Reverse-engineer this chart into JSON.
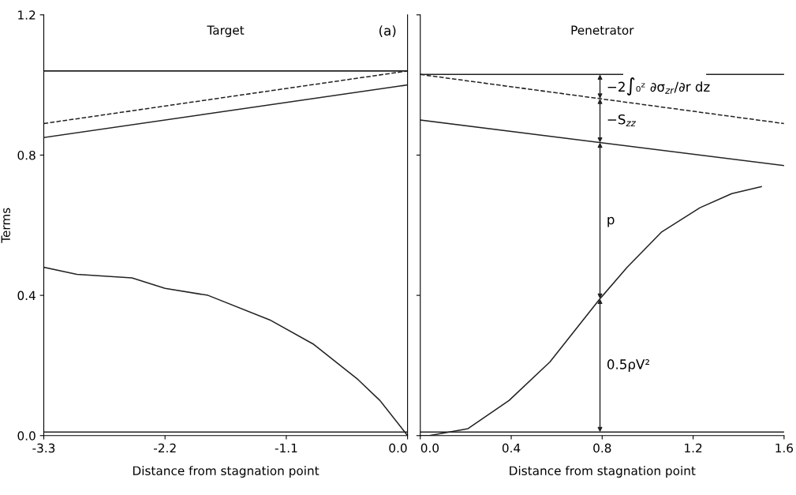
{
  "chart_data": [
    {
      "type": "line",
      "title": "Target",
      "xlabel": "Distance from stagnation point",
      "ylabel": "Terms",
      "xlim": [
        -3.3,
        0.0
      ],
      "xticks": [
        -3.3,
        -2.2,
        -1.1,
        {
          "value": 0.0,
          "label": "0.0"
        }
      ],
      "ylim": [
        0,
        1.2
      ],
      "yticks": [
        {
          "value": 0.0,
          "label": "0.0"
        },
        0.4,
        0.8,
        1.2
      ],
      "grid": false,
      "legend": false,
      "marker": "none",
      "annotations": [
        "(a)"
      ],
      "series": [
        {
          "color": "#222222",
          "x": [
            -3.3,
            0.0
          ],
          "values": [
            1.04,
            1.04
          ]
        },
        {
          "color": "#222222",
          "x": [
            -3.3,
            0.0
          ],
          "values": [
            0.89,
            1.04
          ],
          "line_style": "dashed"
        },
        {
          "color": "#222222",
          "x": [
            -3.3,
            0.0
          ],
          "values": [
            0.85,
            1.0
          ]
        },
        {
          "color": "#222222",
          "x": [
            -3.3,
            -3.0,
            -2.5,
            -2.2,
            -1.81,
            -1.25,
            -0.85,
            -0.45,
            -0.25,
            0.0
          ],
          "values": [
            0.48,
            0.46,
            0.45,
            0.42,
            0.4,
            0.33,
            0.26,
            0.16,
            0.1,
            0.0
          ]
        },
        {
          "color": "#222222",
          "x": [
            -3.3,
            0.0
          ],
          "values": [
            0.01,
            0.01
          ]
        }
      ]
    },
    {
      "type": "line",
      "title": "Penetrator",
      "xlabel": "Distance from stagnation point",
      "xlim": [
        0.0,
        1.6
      ],
      "xticks": [
        {
          "value": 0.0,
          "label": "0.0"
        },
        0.4,
        0.8,
        1.2,
        1.6
      ],
      "ylim": [
        0,
        1.2
      ],
      "tick_labels": "x",
      "grid": false,
      "legend": false,
      "marker": "none",
      "annotations": [
        "0.5ρV²",
        "p",
        "−S$_{zz}$",
        "−2∫₀ᶻ ∂σ$_{zr}$/∂r dz"
      ],
      "series": [
        {
          "color": "#222222",
          "x": [
            0.0,
            0.89,
            1.08,
            1.26,
            1.6
          ],
          "values": [
            1.03,
            1.03,
            null,
            1.03,
            1.03
          ]
        },
        {
          "color": "#222222",
          "x": [
            0.0,
            1.6
          ],
          "values": [
            1.03,
            0.89
          ],
          "line_style": "dashed"
        },
        {
          "color": "#222222",
          "x": [
            0.0,
            1.6
          ],
          "values": [
            0.9,
            0.77
          ]
        },
        {
          "color": "#222222",
          "x": [
            0.0,
            0.04,
            0.21,
            0.39,
            0.57,
            0.79,
            0.91,
            1.06,
            1.23,
            1.37,
            1.5
          ],
          "values": [
            0.0,
            0.0,
            0.02,
            0.1,
            0.21,
            0.39,
            0.48,
            0.58,
            0.65,
            0.69,
            0.71
          ]
        },
        {
          "color": "#222222",
          "x": [
            0.0,
            1.6
          ],
          "values": [
            0.01,
            0.01
          ]
        }
      ]
    }
  ]
}
